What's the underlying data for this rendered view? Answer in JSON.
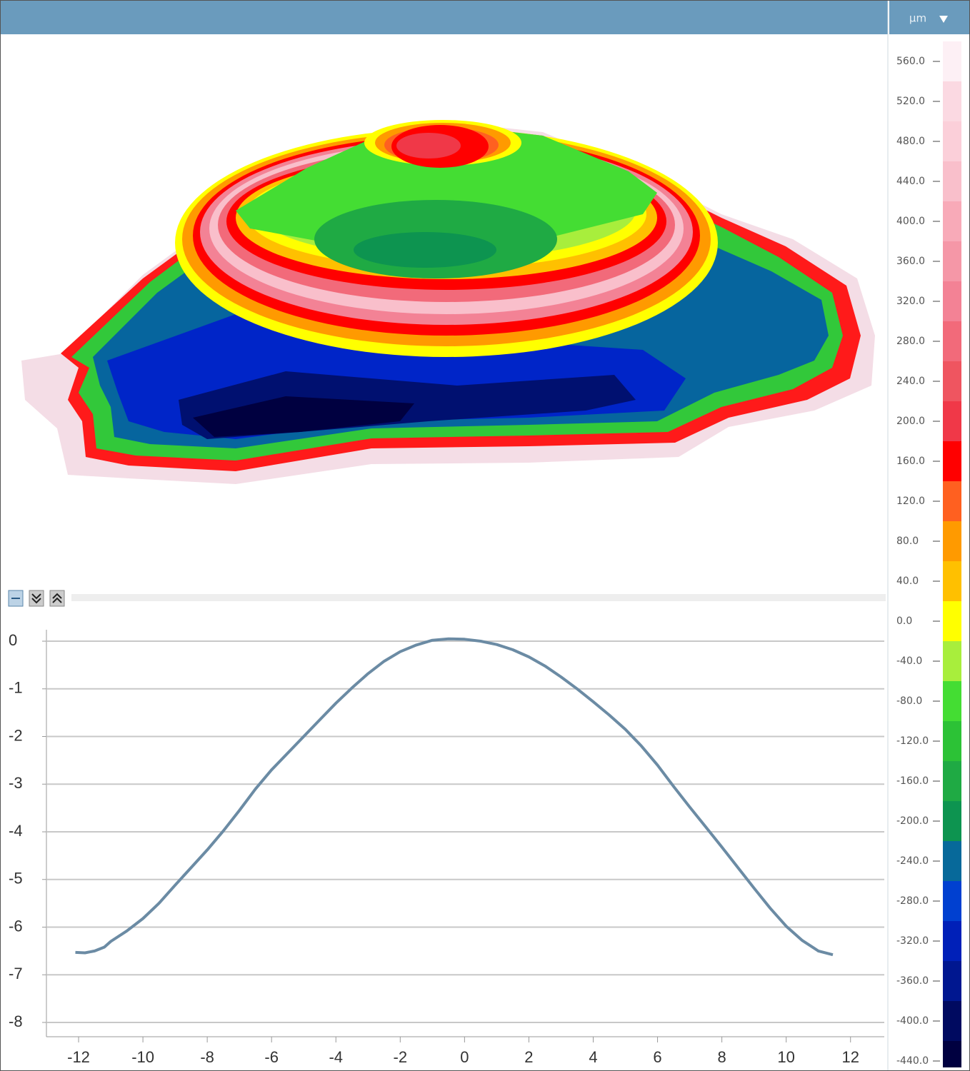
{
  "header": {
    "unit": "µm"
  },
  "colorbar": {
    "ticks": [
      {
        "value": 560,
        "label": "560.0"
      },
      {
        "value": 520,
        "label": "520.0"
      },
      {
        "value": 480,
        "label": "480.0"
      },
      {
        "value": 440,
        "label": "440.0"
      },
      {
        "value": 400,
        "label": "400.0"
      },
      {
        "value": 360,
        "label": "360.0"
      },
      {
        "value": 320,
        "label": "320.0"
      },
      {
        "value": 280,
        "label": "280.0"
      },
      {
        "value": 240,
        "label": "240.0"
      },
      {
        "value": 200,
        "label": "200.0"
      },
      {
        "value": 160,
        "label": "160.0"
      },
      {
        "value": 120,
        "label": "120.0"
      },
      {
        "value": 80,
        "label": "80.0"
      },
      {
        "value": 40,
        "label": "40.0"
      },
      {
        "value": 0,
        "label": "0.0"
      },
      {
        "value": -40,
        "label": "-40.0"
      },
      {
        "value": -80,
        "label": "-80.0"
      },
      {
        "value": -120,
        "label": "-120.0"
      },
      {
        "value": -160,
        "label": "-160.0"
      },
      {
        "value": -200,
        "label": "-200.0"
      },
      {
        "value": -240,
        "label": "-240.0"
      },
      {
        "value": -280,
        "label": "-280.0"
      },
      {
        "value": -320,
        "label": "-320.0"
      },
      {
        "value": -360,
        "label": "-360.0"
      },
      {
        "value": -400,
        "label": "-400.0"
      },
      {
        "value": -440,
        "label": "-440.0"
      }
    ],
    "colors": [
      "#fdf0f5",
      "#fbd9e2",
      "#fbcfd9",
      "#f9bfcb",
      "#f8aab8",
      "#f597a7",
      "#f38295",
      "#f26a7a",
      "#ef5560",
      "#f03848",
      "#ff0000",
      "#ff6020",
      "#ff9a00",
      "#ffc000",
      "#ffff00",
      "#a8ee3c",
      "#44dd33",
      "#2cc236",
      "#1faa44",
      "#0d9450",
      "#07699a",
      "#0040d0",
      "#0020b8",
      "#001790",
      "#000a60",
      "#000040"
    ]
  },
  "chart_data": {
    "type": "line",
    "color": "#6b8ba4",
    "x": [
      -12.1,
      -11.8,
      -11.5,
      -11.2,
      -11,
      -10.5,
      -10,
      -9.5,
      -9,
      -8.5,
      -8,
      -7.5,
      -7,
      -6.5,
      -6,
      -5.5,
      -5,
      -4.5,
      -4,
      -3.5,
      -3,
      -2.5,
      -2,
      -1.5,
      -1,
      -0.5,
      0,
      0.5,
      1,
      1.5,
      2,
      2.5,
      3,
      3.5,
      4,
      4.5,
      5,
      5.5,
      6,
      6.5,
      7,
      7.5,
      8,
      8.5,
      9,
      9.5,
      10,
      10.5,
      11,
      11.45
    ],
    "values": [
      -6.53,
      -6.54,
      -6.5,
      -6.42,
      -6.3,
      -6.08,
      -5.82,
      -5.5,
      -5.12,
      -4.75,
      -4.38,
      -3.98,
      -3.55,
      -3.1,
      -2.7,
      -2.35,
      -2.0,
      -1.65,
      -1.3,
      -0.98,
      -0.68,
      -0.42,
      -0.22,
      -0.08,
      0.02,
      0.05,
      0.04,
      0.0,
      -0.07,
      -0.18,
      -0.33,
      -0.52,
      -0.75,
      -1.0,
      -1.27,
      -1.55,
      -1.85,
      -2.2,
      -2.6,
      -3.05,
      -3.48,
      -3.9,
      -4.32,
      -4.75,
      -5.18,
      -5.6,
      -5.98,
      -6.28,
      -6.5,
      -6.58
    ],
    "xlim": [
      -13,
      13.05
    ],
    "ylim": [
      -8.3,
      0.24
    ],
    "xticks": [
      -12,
      -10,
      -8,
      -6,
      -4,
      -2,
      0,
      2,
      4,
      6,
      8,
      10,
      12
    ],
    "yticks": [
      0,
      -1,
      -2,
      -3,
      -4,
      -5,
      -6,
      -7,
      -8
    ],
    "grid": true
  }
}
